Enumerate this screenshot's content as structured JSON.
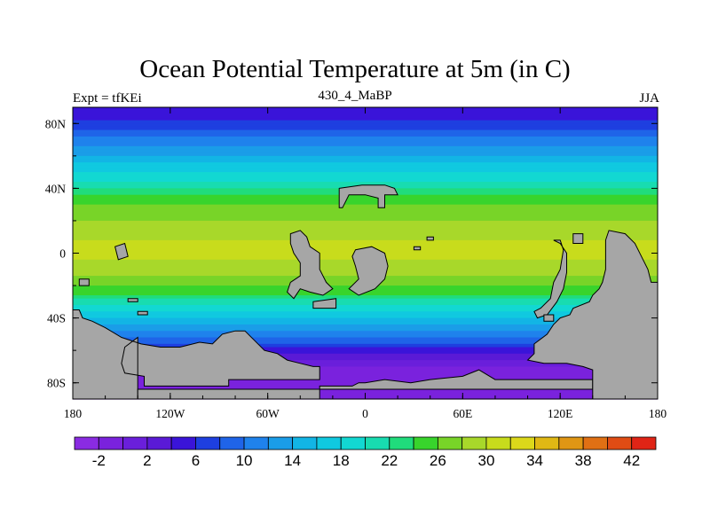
{
  "title": "Ocean Potential Temperature at 5m (in C)",
  "left_label": "Expt = tfKEi",
  "center_label": "430_4_MaBP",
  "right_label": "JJA",
  "chart_data": {
    "type": "heatmap",
    "projection": "cylindrical-equidistant",
    "x_range": [
      -180,
      180
    ],
    "y_range": [
      -90,
      90
    ],
    "x_ticks": [
      {
        "value": -180,
        "label": "180"
      },
      {
        "value": -120,
        "label": "120W"
      },
      {
        "value": -60,
        "label": "60W"
      },
      {
        "value": 0,
        "label": "0"
      },
      {
        "value": 60,
        "label": "60E"
      },
      {
        "value": 120,
        "label": "120E"
      },
      {
        "value": 180,
        "label": "180"
      }
    ],
    "y_ticks": [
      {
        "value": 80,
        "label": "80N"
      },
      {
        "value": 40,
        "label": "40N"
      },
      {
        "value": 0,
        "label": "0"
      },
      {
        "value": -40,
        "label": "40S"
      },
      {
        "value": -80,
        "label": "80S"
      }
    ],
    "land_color": "#a6a6a6",
    "zonal_temperature_profile": [
      {
        "lat": 90,
        "temp": 4
      },
      {
        "lat": 82,
        "temp": 6
      },
      {
        "lat": 74,
        "temp": 9
      },
      {
        "lat": 66,
        "temp": 12
      },
      {
        "lat": 58,
        "temp": 15
      },
      {
        "lat": 50,
        "temp": 18
      },
      {
        "lat": 42,
        "temp": 21
      },
      {
        "lat": 35,
        "temp": 24
      },
      {
        "lat": 28,
        "temp": 26.5
      },
      {
        "lat": 18,
        "temp": 28.5
      },
      {
        "lat": 8,
        "temp": 30
      },
      {
        "lat": 0,
        "temp": 30.5
      },
      {
        "lat": -8,
        "temp": 29.5
      },
      {
        "lat": -16,
        "temp": 27.5
      },
      {
        "lat": -22,
        "temp": 25.5
      },
      {
        "lat": -28,
        "temp": 22.5
      },
      {
        "lat": -34,
        "temp": 19
      },
      {
        "lat": -40,
        "temp": 16
      },
      {
        "lat": -46,
        "temp": 12.5
      },
      {
        "lat": -52,
        "temp": 9.5
      },
      {
        "lat": -58,
        "temp": 6.5
      },
      {
        "lat": -64,
        "temp": 3
      },
      {
        "lat": -70,
        "temp": 0
      },
      {
        "lat": -76,
        "temp": -1.5
      },
      {
        "lat": -82,
        "temp": -2
      },
      {
        "lat": -90,
        "temp": -2
      }
    ],
    "colorbar": {
      "levels": [
        -4,
        -2,
        0,
        2,
        4,
        6,
        8,
        10,
        12,
        14,
        16,
        18,
        20,
        22,
        24,
        26,
        28,
        30,
        32,
        34,
        36,
        38,
        40,
        42,
        44
      ],
      "colors": [
        "#8a2be2",
        "#7a22dd",
        "#6a1fdb",
        "#5a1ad6",
        "#3a14d9",
        "#1e3fe0",
        "#1f64e8",
        "#1f82ec",
        "#1a9de8",
        "#12b5e5",
        "#10c9e0",
        "#12d8d2",
        "#18dcb0",
        "#20dc7c",
        "#38d42c",
        "#78d428",
        "#a8d82a",
        "#c8dc1c",
        "#dcd81a",
        "#e0b814",
        "#e09614",
        "#e07014",
        "#e04c14",
        "#e02416"
      ],
      "labels": [
        {
          "value": -2,
          "label": "-2"
        },
        {
          "value": 2,
          "label": "2"
        },
        {
          "value": 6,
          "label": "6"
        },
        {
          "value": 10,
          "label": "10"
        },
        {
          "value": 14,
          "label": "14"
        },
        {
          "value": 18,
          "label": "18"
        },
        {
          "value": 22,
          "label": "22"
        },
        {
          "value": 26,
          "label": "26"
        },
        {
          "value": 30,
          "label": "30"
        },
        {
          "value": 34,
          "label": "34"
        },
        {
          "value": 38,
          "label": "38"
        },
        {
          "value": 42,
          "label": "42"
        }
      ]
    },
    "land_masses": [
      {
        "name": "antarctica-west",
        "points": [
          [
            -180,
            -90
          ],
          [
            -180,
            -35
          ],
          [
            -176,
            -35
          ],
          [
            -174,
            -40
          ],
          [
            -168,
            -42
          ],
          [
            -160,
            -46
          ],
          [
            -150,
            -52
          ],
          [
            -138,
            -56
          ],
          [
            -126,
            -58
          ],
          [
            -114,
            -58
          ],
          [
            -102,
            -55
          ],
          [
            -94,
            -56
          ],
          [
            -88,
            -50
          ],
          [
            -80,
            -48
          ],
          [
            -74,
            -48
          ],
          [
            -68,
            -54
          ],
          [
            -62,
            -60
          ],
          [
            -54,
            -62
          ],
          [
            -48,
            -66
          ],
          [
            -40,
            -68
          ],
          [
            -32,
            -70
          ],
          [
            -28,
            -70
          ],
          [
            -28,
            -78
          ],
          [
            -84,
            -78
          ],
          [
            -84,
            -82
          ],
          [
            -136,
            -82
          ],
          [
            -136,
            -76
          ],
          [
            -148,
            -74
          ],
          [
            -150,
            -68
          ],
          [
            -148,
            -58
          ],
          [
            -140,
            -52
          ],
          [
            -140,
            -90
          ]
        ]
      },
      {
        "name": "antarctica-east",
        "points": [
          [
            -140,
            -90
          ],
          [
            -140,
            -84
          ],
          [
            140,
            -84
          ],
          [
            140,
            -78
          ],
          [
            80,
            -78
          ],
          [
            70,
            -72
          ],
          [
            60,
            -76
          ],
          [
            40,
            -78
          ],
          [
            28,
            -80
          ],
          [
            12,
            -78
          ],
          [
            0,
            -80
          ],
          [
            -4,
            -80
          ],
          [
            -8,
            -82
          ],
          [
            -28,
            -82
          ],
          [
            -28,
            -90
          ]
        ]
      },
      {
        "name": "australia-asia",
        "points": [
          [
            180,
            -90
          ],
          [
            180,
            -18
          ],
          [
            176,
            -18
          ],
          [
            174,
            -10
          ],
          [
            170,
            -2
          ],
          [
            166,
            6
          ],
          [
            160,
            12
          ],
          [
            150,
            14
          ],
          [
            148,
            8
          ],
          [
            148,
            -10
          ],
          [
            146,
            -18
          ],
          [
            144,
            -22
          ],
          [
            140,
            -26
          ],
          [
            138,
            -30
          ],
          [
            128,
            -34
          ],
          [
            126,
            -38
          ],
          [
            120,
            -40
          ],
          [
            116,
            -44
          ],
          [
            112,
            -50
          ],
          [
            104,
            -56
          ],
          [
            104,
            -62
          ],
          [
            100,
            -66
          ],
          [
            110,
            -68
          ],
          [
            124,
            -68
          ],
          [
            134,
            -70
          ],
          [
            140,
            -72
          ],
          [
            140,
            -90
          ]
        ]
      },
      {
        "name": "island-north",
        "points": [
          [
            -16,
            40
          ],
          [
            -2,
            42
          ],
          [
            12,
            42
          ],
          [
            18,
            40
          ],
          [
            20,
            36
          ],
          [
            12,
            36
          ],
          [
            12,
            28
          ],
          [
            8,
            28
          ],
          [
            8,
            34
          ],
          [
            0,
            36
          ],
          [
            -10,
            36
          ],
          [
            -14,
            28
          ],
          [
            -16,
            28
          ]
        ]
      },
      {
        "name": "island-pacific-a",
        "points": [
          [
            -46,
            12
          ],
          [
            -40,
            14
          ],
          [
            -36,
            10
          ],
          [
            -34,
            4
          ],
          [
            -28,
            0
          ],
          [
            -28,
            -10
          ],
          [
            -24,
            -18
          ],
          [
            -20,
            -22
          ],
          [
            -26,
            -26
          ],
          [
            -34,
            -24
          ],
          [
            -40,
            -22
          ],
          [
            -44,
            -28
          ],
          [
            -48,
            -24
          ],
          [
            -46,
            -18
          ],
          [
            -40,
            -14
          ],
          [
            -40,
            -6
          ],
          [
            -44,
            0
          ],
          [
            -46,
            6
          ]
        ]
      },
      {
        "name": "island-pacific-b",
        "points": [
          [
            -6,
            2
          ],
          [
            4,
            4
          ],
          [
            12,
            0
          ],
          [
            14,
            -8
          ],
          [
            12,
            -16
          ],
          [
            6,
            -22
          ],
          [
            -4,
            -26
          ],
          [
            -10,
            -22
          ],
          [
            -4,
            -16
          ],
          [
            -6,
            -8
          ],
          [
            -8,
            -2
          ]
        ]
      },
      {
        "name": "island-west",
        "points": [
          [
            -154,
            4
          ],
          [
            -148,
            6
          ],
          [
            -146,
            -2
          ],
          [
            -152,
            -4
          ]
        ]
      },
      {
        "name": "island-west-b",
        "points": [
          [
            -176,
            -16
          ],
          [
            -170,
            -16
          ],
          [
            -170,
            -20
          ],
          [
            -176,
            -20
          ]
        ]
      },
      {
        "name": "island-west-c",
        "points": [
          [
            -146,
            -28
          ],
          [
            -140,
            -28
          ],
          [
            -140,
            -30
          ],
          [
            -146,
            -30
          ]
        ]
      },
      {
        "name": "island-west-d",
        "points": [
          [
            -140,
            -36
          ],
          [
            -134,
            -36
          ],
          [
            -134,
            -38
          ],
          [
            -140,
            -38
          ]
        ]
      },
      {
        "name": "island-central",
        "points": [
          [
            -32,
            -30
          ],
          [
            -18,
            -28
          ],
          [
            -18,
            -34
          ],
          [
            -32,
            -34
          ]
        ]
      },
      {
        "name": "island-east-a",
        "points": [
          [
            30,
            4
          ],
          [
            34,
            4
          ],
          [
            34,
            2
          ],
          [
            30,
            2
          ]
        ]
      },
      {
        "name": "island-east-b",
        "points": [
          [
            38,
            10
          ],
          [
            42,
            10
          ],
          [
            42,
            8
          ],
          [
            38,
            8
          ]
        ]
      },
      {
        "name": "island-east-c",
        "points": [
          [
            116,
            8
          ],
          [
            120,
            8
          ],
          [
            122,
            2
          ],
          [
            120,
            -10
          ],
          [
            116,
            -18
          ],
          [
            114,
            -28
          ],
          [
            108,
            -34
          ],
          [
            104,
            -36
          ],
          [
            106,
            -40
          ],
          [
            112,
            -38
          ],
          [
            118,
            -30
          ],
          [
            122,
            -22
          ],
          [
            124,
            -12
          ],
          [
            124,
            0
          ],
          [
            120,
            6
          ]
        ]
      },
      {
        "name": "island-east-d",
        "points": [
          [
            128,
            12
          ],
          [
            134,
            12
          ],
          [
            134,
            6
          ],
          [
            128,
            6
          ]
        ]
      },
      {
        "name": "island-east-e",
        "points": [
          [
            110,
            -38
          ],
          [
            116,
            -38
          ],
          [
            116,
            -42
          ],
          [
            110,
            -42
          ]
        ]
      }
    ]
  }
}
